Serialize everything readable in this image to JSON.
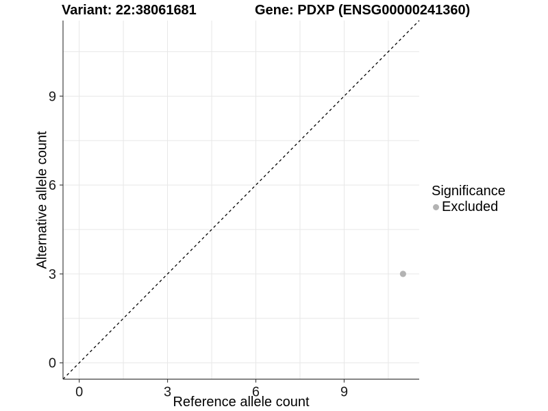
{
  "chart_data": {
    "type": "scatter",
    "titles": {
      "left": "Variant: 22:38061681",
      "right": "Gene: PDXP (ENSG00000241360)"
    },
    "xlabel": "Reference allele count",
    "ylabel": "Alternative allele count",
    "x_ticks": [
      0,
      3,
      6,
      9
    ],
    "y_ticks": [
      0,
      3,
      6,
      9
    ],
    "minor_tick_offset": 1.5,
    "xlim": [
      -0.55,
      11.55
    ],
    "ylim": [
      -0.55,
      11.55
    ],
    "grid": true,
    "points": [
      {
        "x": 11,
        "y": 3,
        "significance": "Excluded"
      }
    ],
    "point_radius": 4.6,
    "identity_line": {
      "slope": 1,
      "intercept": 0,
      "style": "dashed"
    },
    "legend": {
      "title": "Significance",
      "position": "right",
      "items": [
        {
          "label": "Excluded",
          "color": "#b3b3b3",
          "marker": "circle"
        }
      ]
    },
    "colors": {
      "point": "#b3b3b3",
      "grid": "#e7e7e7",
      "axis": "#404040",
      "tick_text": "#1a1a1a",
      "dashed_line": "#000000",
      "background": "#ffffff"
    }
  }
}
